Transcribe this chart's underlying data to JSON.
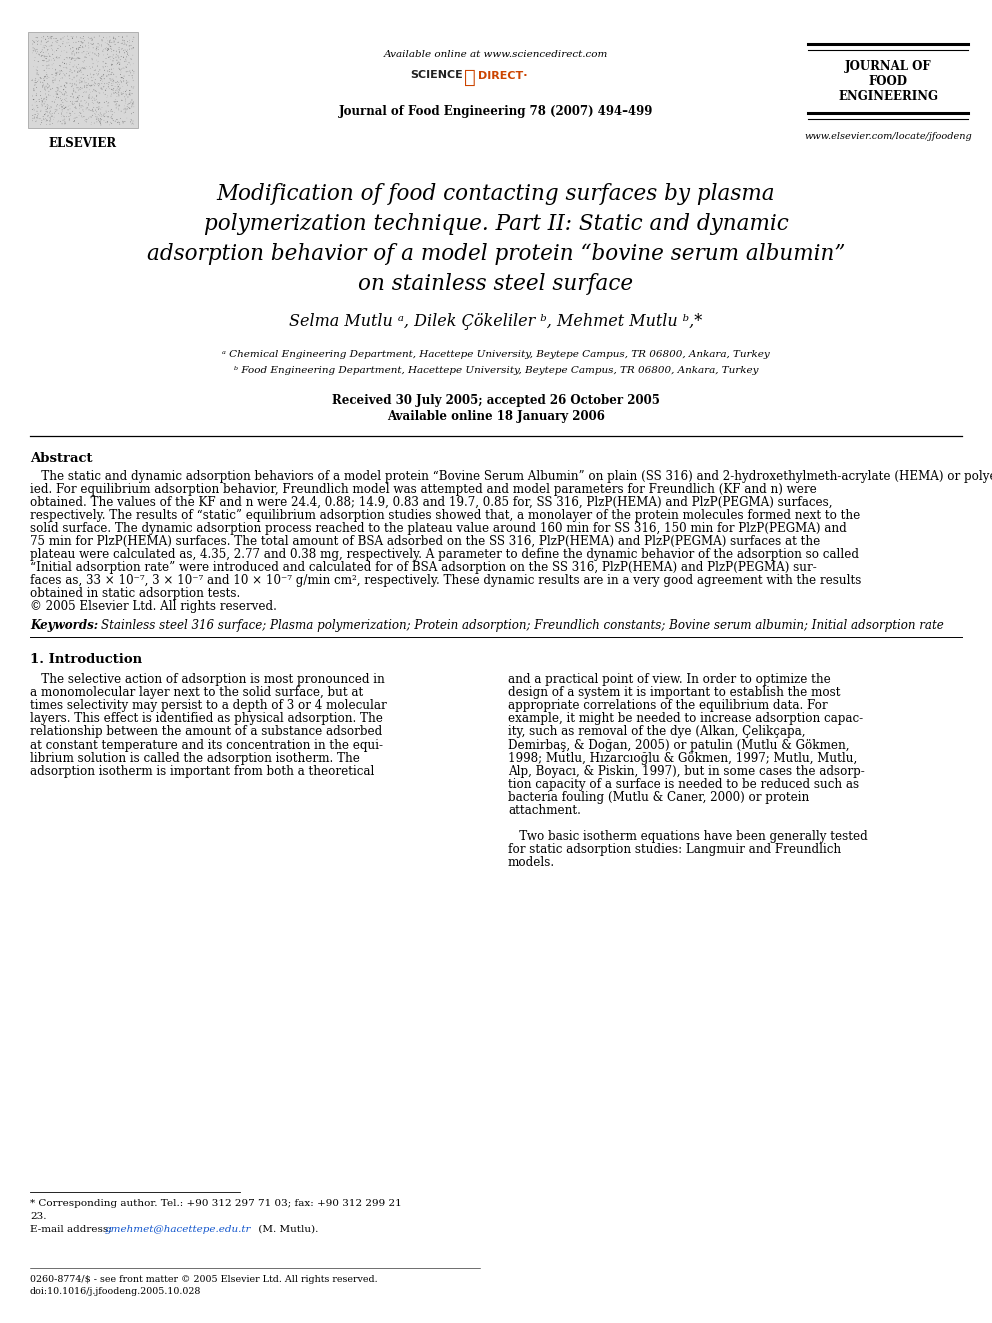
{
  "bg_color": "#ffffff",
  "elsevier_label": "ELSEVIER",
  "available_online_text": "Available online at www.sciencedirect.com",
  "science_text": "SCIENCE",
  "direct_text": "DIRECT·",
  "journal_line": "Journal of Food Engineering 78 (2007) 494–499",
  "journal_right": [
    "JOURNAL OF",
    "FOOD",
    "ENGINEERING"
  ],
  "website": "www.elsevier.com/locate/jfoodeng",
  "title_lines": [
    "Modification of food contacting surfaces by plasma",
    "polymerization technique. Part II: Static and dynamic",
    "adsorption behavior of a model protein “bovine serum albumin”",
    "on stainless steel surface"
  ],
  "authors": "Selma Mutlu ᵃ, Dilek Çökeliler ᵇ, Mehmet Mutlu ᵇ,*",
  "aff_a": "ᵃ Chemical Engineering Department, Hacettepe University, Beytepe Campus, TR 06800, Ankara, Turkey",
  "aff_b": "ᵇ Food Engineering Department, Hacettepe University, Beytepe Campus, TR 06800, Ankara, Turkey",
  "received": "Received 30 July 2005; accepted 26 October 2005",
  "available_date": "Available online 18 January 2006",
  "abstract_label": "Abstract",
  "abstract_lines": [
    "   The static and dynamic adsorption behaviors of a model protein “Bovine Serum Albumin” on plain (SS 316) and 2-hydroxethylmeth-acrylate (HEMA) or polyethyleneglycolmethacrylate (PEGMA) plasma polymerization (PlzP) modified stainless steel surfaces were stud-",
    "ied. For equilibrium adsorption behavior, Freundlich model was attempted and model parameters for Freundlich (KF and n) were",
    "obtained. The values of the KF and n were 24.4, 0.88; 14.9, 0.83 and 19.7, 0.85 for, SS 316, PlzP(HEMA) and PlzP(PEGMA) surfaces,",
    "respectively. The results of “static” equilibrium adsorption studies showed that, a monolayer of the protein molecules formed next to the",
    "solid surface. The dynamic adsorption process reached to the plateau value around 160 min for SS 316, 150 min for PlzP(PEGMA) and",
    "75 min for PlzP(HEMA) surfaces. The total amount of BSA adsorbed on the SS 316, PlzP(HEMA) and PlzP(PEGMA) surfaces at the",
    "plateau were calculated as, 4.35, 2.77 and 0.38 mg, respectively. A parameter to define the dynamic behavior of the adsorption so called",
    "“Initial adsorption rate” were introduced and calculated for of BSA adsorption on the SS 316, PlzP(HEMA) and PlzP(PEGMA) sur-",
    "faces as, 33 × 10⁻⁷, 3 × 10⁻⁷ and 10 × 10⁻⁷ g/min cm², respectively. These dynamic results are in a very good agreement with the results",
    "obtained in static adsorption tests.",
    "© 2005 Elsevier Ltd. All rights reserved."
  ],
  "keywords_label": "Keywords:",
  "keywords_text": "Stainless steel 316 surface; Plasma polymerization; Protein adsorption; Freundlich constants; Bovine serum albumin; Initial adsorption rate",
  "intro_title": "1. Introduction",
  "intro_col1_lines": [
    "   The selective action of adsorption is most pronounced in",
    "a monomolecular layer next to the solid surface, but at",
    "times selectivity may persist to a depth of 3 or 4 molecular",
    "layers. This effect is identified as physical adsorption. The",
    "relationship between the amount of a substance adsorbed",
    "at constant temperature and its concentration in the equi-",
    "librium solution is called the adsorption isotherm. The",
    "adsorption isotherm is important from both a theoretical"
  ],
  "intro_col2_lines": [
    "and a practical point of view. In order to optimize the",
    "design of a system it is important to establish the most",
    "appropriate correlations of the equilibrium data. For",
    "example, it might be needed to increase adsorption capac-",
    "ity, such as removal of the dye (Alkan, Çelikçapa,",
    "Demirbaş, & Doğan, 2005) or patulin (Mutlu & Gökmen,",
    "1998; Mutlu, Hızarcıoğlu & Gökmen, 1997; Mutlu, Mutlu,",
    "Alp, Boyacı, & Piskin, 1997), but in some cases the adsorp-",
    "tion capacity of a surface is needed to be reduced such as",
    "bacteria fouling (Mutlu & Caner, 2000) or protein",
    "attachment.",
    "",
    "   Two basic isotherm equations have been generally tested",
    "for static adsorption studies: Langmuir and Freundlich",
    "models."
  ],
  "footnote_line1": "* Corresponding author. Tel.: +90 312 297 71 03; fax: +90 312 299 21",
  "footnote_line2": "23.",
  "footnote_email_prefix": "E-mail address: ",
  "footnote_email": "gmehmet@hacettepe.edu.tr",
  "footnote_email_suffix": " (M. Mutlu).",
  "footer_line1": "0260-8774/$ - see front matter © 2005 Elsevier Ltd. All rights reserved.",
  "footer_line2": "doi:10.1016/j.jfoodeng.2005.10.028"
}
